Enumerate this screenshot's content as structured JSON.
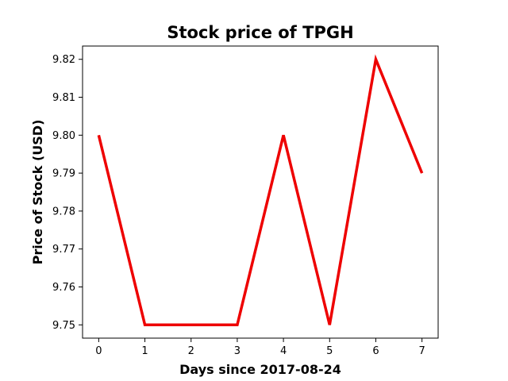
{
  "chart_data": {
    "type": "line",
    "title": "Stock price of TPGH",
    "xlabel": "Days since 2017-08-24",
    "ylabel": "Price of Stock (USD)",
    "xlim": [
      -0.35,
      7.35
    ],
    "ylim": [
      9.7465,
      9.8235
    ],
    "xticks": [
      0,
      1,
      2,
      3,
      4,
      5,
      6,
      7
    ],
    "yticks": [
      9.75,
      9.76,
      9.77,
      9.78,
      9.79,
      9.8,
      9.81,
      9.82
    ],
    "ytick_labels": [
      "9.75",
      "9.76",
      "9.77",
      "9.78",
      "9.79",
      "9.80",
      "9.81",
      "9.82"
    ],
    "grid": false,
    "series": [
      {
        "color": "#ee0000",
        "x": [
          0,
          1,
          2,
          3,
          4,
          5,
          6,
          7
        ],
        "y": [
          9.8,
          9.75,
          9.75,
          9.75,
          9.8,
          9.75,
          9.82,
          9.79
        ]
      }
    ]
  }
}
